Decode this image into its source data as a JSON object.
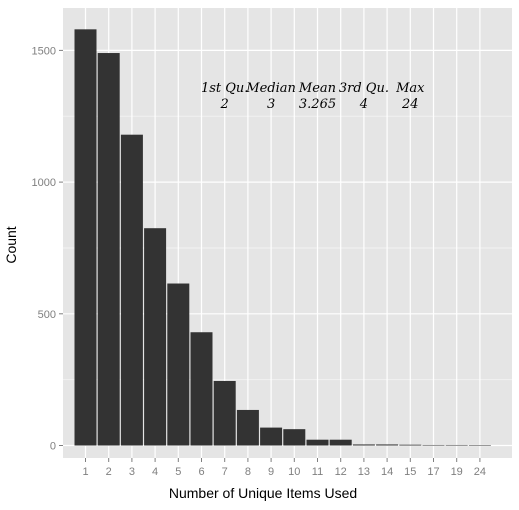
{
  "chart_data": {
    "type": "bar",
    "title": "",
    "xlabel": "Number of Unique Items Used",
    "ylabel": "Count",
    "categories": [
      "1",
      "2",
      "3",
      "4",
      "5",
      "6",
      "7",
      "8",
      "9",
      "10",
      "11",
      "12",
      "13",
      "14",
      "15",
      "17",
      "19",
      "24"
    ],
    "x_tick_labels": [
      "1",
      "2",
      "3",
      "4",
      "5",
      "6",
      "7",
      "8",
      "9",
      "10",
      "11",
      "12",
      "13",
      "14",
      "15",
      "17",
      "19",
      "24"
    ],
    "values": [
      1580,
      1490,
      1180,
      825,
      615,
      430,
      245,
      135,
      68,
      62,
      22,
      22,
      4,
      4,
      3,
      2,
      2,
      1
    ],
    "ylim": [
      0,
      1650
    ],
    "y_ticks": [
      0,
      500,
      1000,
      1500
    ],
    "y_tick_labels": [
      "0",
      "500",
      "1000",
      "1500"
    ],
    "grid": true,
    "colors": {
      "bar": "#333333",
      "panel": "#e5e5e5",
      "grid_major": "#ffffff",
      "grid_minor": "#f2f2f2"
    },
    "annotations": [
      {
        "label": "1st Qu.",
        "value": "2",
        "x": "7"
      },
      {
        "label": "Median",
        "value": "3",
        "x": "9"
      },
      {
        "label": "Mean",
        "value": "3.265",
        "x": "11"
      },
      {
        "label": "3rd Qu.",
        "value": "4",
        "x": "13"
      },
      {
        "label": "Max",
        "value": "24",
        "x": "15"
      }
    ]
  }
}
